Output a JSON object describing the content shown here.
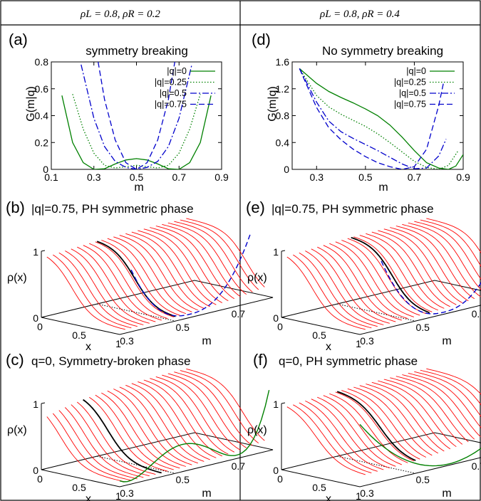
{
  "header": {
    "left": "ρL = 0.8, ρR = 0.2",
    "right": "ρL = 0.8, ρR = 0.4"
  },
  "colors": {
    "q0": "#008000",
    "q025": "#008000",
    "q05": "#0000cc",
    "q075": "#0000cc",
    "surface": "#ff0000",
    "central_line": "#000000"
  },
  "panels": {
    "a": {
      "label": "(a)",
      "title": "symmetry breaking",
      "ylabel": "G(m|q)",
      "xlabel": "m",
      "xticks": [
        "0.1",
        "0.3",
        "0.5",
        "0.7",
        "0.9"
      ],
      "yticks": [
        "0",
        "0.2",
        "0.4",
        "0.6",
        "0.8"
      ]
    },
    "d": {
      "label": "(d)",
      "title": "No symmetry breaking",
      "ylabel": "G(m|q)",
      "xlabel": "m",
      "xticks": [
        "0.3",
        "0.5",
        "0.7",
        "0.9"
      ],
      "yticks": [
        "0",
        "0.4",
        "0.8",
        "1.2",
        "1.6"
      ]
    },
    "b": {
      "label": "(b)",
      "title": "|q|=0.75, PH symmetric phase"
    },
    "e": {
      "label": "(e)",
      "title": "|q|=0.75, PH symmetric phase"
    },
    "c": {
      "label": "(c)",
      "title": "q=0, Symmetry-broken phase"
    },
    "f": {
      "label": "(f)",
      "title": "q=0, PH symmetric phase"
    },
    "surface_axes": {
      "zlabel": "ρ(x)",
      "xlabel": "x",
      "mlabel": "m",
      "zticks": [
        "0",
        "1"
      ],
      "xticks": [
        "0",
        "0.5",
        "1"
      ],
      "mticks": [
        "0.3",
        "0.5",
        "0.7"
      ]
    }
  },
  "legend": [
    "|q|=0",
    "|q|=0.25",
    "|q|=0.5",
    "|q|=0.75"
  ],
  "chart_data": [
    {
      "type": "line",
      "panel": "a",
      "title": "symmetry breaking",
      "xlabel": "m",
      "ylabel": "G(m|q)",
      "xlim": [
        0.1,
        0.9
      ],
      "ylim": [
        0,
        0.8
      ],
      "series": [
        {
          "name": "|q|=0",
          "style": "solid",
          "x": [
            0.15,
            0.2,
            0.25,
            0.3,
            0.35,
            0.4,
            0.45,
            0.5,
            0.55,
            0.6,
            0.65,
            0.7,
            0.75,
            0.8,
            0.85
          ],
          "y": [
            0.55,
            0.2,
            0.05,
            0.0,
            0.005,
            0.04,
            0.07,
            0.08,
            0.07,
            0.04,
            0.005,
            0.0,
            0.05,
            0.2,
            0.55
          ]
        },
        {
          "name": "|q|=0.25",
          "style": "dotted",
          "x": [
            0.2,
            0.25,
            0.3,
            0.35,
            0.4,
            0.45,
            0.5,
            0.55,
            0.6,
            0.65,
            0.7,
            0.75,
            0.8
          ],
          "y": [
            0.56,
            0.3,
            0.12,
            0.03,
            0.01,
            0.02,
            0.03,
            0.02,
            0.01,
            0.03,
            0.12,
            0.3,
            0.56
          ]
        },
        {
          "name": "|q|=0.5",
          "style": "dashdot",
          "x": [
            0.24,
            0.3,
            0.35,
            0.4,
            0.45,
            0.5,
            0.55,
            0.6,
            0.65,
            0.7,
            0.76
          ],
          "y": [
            0.78,
            0.38,
            0.17,
            0.06,
            0.015,
            0.0,
            0.015,
            0.06,
            0.17,
            0.38,
            0.78
          ]
        },
        {
          "name": "|q|=0.75",
          "style": "dashed",
          "x": [
            0.32,
            0.35,
            0.4,
            0.45,
            0.5,
            0.55,
            0.6,
            0.65,
            0.68
          ],
          "y": [
            0.8,
            0.52,
            0.22,
            0.05,
            0.0,
            0.05,
            0.22,
            0.52,
            0.8
          ]
        }
      ]
    },
    {
      "type": "line",
      "panel": "d",
      "title": "No symmetry breaking",
      "xlabel": "m",
      "ylabel": "G(m|q)",
      "xlim": [
        0.2,
        0.9
      ],
      "ylim": [
        0,
        1.6
      ],
      "series": [
        {
          "name": "|q|=0",
          "style": "solid",
          "x": [
            0.23,
            0.3,
            0.35,
            0.4,
            0.45,
            0.5,
            0.55,
            0.6,
            0.65,
            0.7,
            0.75,
            0.8,
            0.84,
            0.87,
            0.9
          ],
          "y": [
            1.5,
            1.28,
            1.16,
            1.07,
            0.99,
            0.9,
            0.8,
            0.66,
            0.48,
            0.28,
            0.1,
            0.02,
            0.0,
            0.05,
            0.22
          ]
        },
        {
          "name": "|q|=0.25",
          "style": "dotted",
          "x": [
            0.23,
            0.3,
            0.35,
            0.4,
            0.45,
            0.5,
            0.55,
            0.6,
            0.65,
            0.7,
            0.75,
            0.8,
            0.84,
            0.88
          ],
          "y": [
            1.5,
            1.1,
            0.93,
            0.82,
            0.73,
            0.64,
            0.53,
            0.4,
            0.26,
            0.12,
            0.03,
            0.0,
            0.06,
            0.28
          ]
        },
        {
          "name": "|q|=0.5",
          "style": "dashdot",
          "x": [
            0.23,
            0.3,
            0.35,
            0.4,
            0.45,
            0.5,
            0.55,
            0.6,
            0.65,
            0.7,
            0.75,
            0.8,
            0.83
          ],
          "y": [
            1.5,
            1.0,
            0.72,
            0.56,
            0.46,
            0.37,
            0.28,
            0.18,
            0.08,
            0.01,
            0.02,
            0.2,
            0.45
          ]
        },
        {
          "name": "|q|=0.75",
          "style": "dashed",
          "x": [
            0.23,
            0.3,
            0.35,
            0.4,
            0.45,
            0.5,
            0.55,
            0.6,
            0.65,
            0.7,
            0.75,
            0.8,
            0.82
          ],
          "y": [
            1.5,
            0.92,
            0.62,
            0.44,
            0.3,
            0.19,
            0.1,
            0.04,
            0.0,
            0.04,
            0.3,
            0.95,
            1.3
          ]
        }
      ]
    }
  ]
}
